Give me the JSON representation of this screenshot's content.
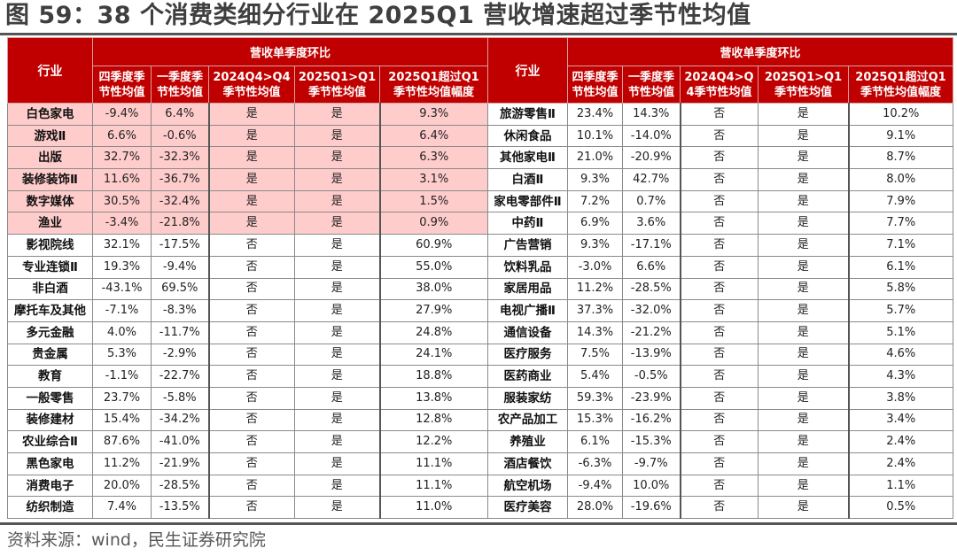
{
  "title": "图 59：38 个消费类细分行业在 2025Q1 营收增速超过季节性均值",
  "source": "资料来源：wind，民生证券研究院",
  "colors": {
    "header_bg": "#c00000",
    "header_text": "#ffffff",
    "highlight_row_bg": "#ffcccc",
    "title_text": "#3f3f3f"
  },
  "left_table": {
    "industry_header": "行业",
    "group_header": "营收单季度环比",
    "columns": [
      "四季度季节性均值",
      "一季度季节性均值",
      "2024Q4>Q4季节性均值",
      "2025Q1>Q1季节性均值",
      "2025Q1超过Q1季节性均值幅度"
    ],
    "col_lines": [
      [
        "四季度季",
        "节性均值"
      ],
      [
        "一季度季",
        "节性均值"
      ],
      [
        "2024Q4>Q4",
        "季节性均值"
      ],
      [
        "2025Q1>Q1",
        "季节性均值"
      ],
      [
        "2025Q1超过Q1",
        "季节性均值幅度"
      ]
    ],
    "rows": [
      {
        "name": "白色家电",
        "q4": "-9.4%",
        "q1": "6.4%",
        "q4_above": "是",
        "q1_above": "是",
        "margin": "9.3%",
        "highlight": true
      },
      {
        "name": "游戏Ⅱ",
        "q4": "6.6%",
        "q1": "-0.6%",
        "q4_above": "是",
        "q1_above": "是",
        "margin": "6.4%",
        "highlight": true
      },
      {
        "name": "出版",
        "q4": "32.7%",
        "q1": "-32.3%",
        "q4_above": "是",
        "q1_above": "是",
        "margin": "6.3%",
        "highlight": true
      },
      {
        "name": "装修装饰Ⅱ",
        "q4": "11.6%",
        "q1": "-36.7%",
        "q4_above": "是",
        "q1_above": "是",
        "margin": "3.1%",
        "highlight": true
      },
      {
        "name": "数字媒体",
        "q4": "30.5%",
        "q1": "-32.4%",
        "q4_above": "是",
        "q1_above": "是",
        "margin": "1.5%",
        "highlight": true
      },
      {
        "name": "渔业",
        "q4": "-3.4%",
        "q1": "-21.8%",
        "q4_above": "是",
        "q1_above": "是",
        "margin": "0.9%",
        "highlight": true
      },
      {
        "name": "影视院线",
        "q4": "32.1%",
        "q1": "-17.5%",
        "q4_above": "否",
        "q1_above": "是",
        "margin": "60.9%",
        "highlight": false
      },
      {
        "name": "专业连锁Ⅱ",
        "q4": "19.3%",
        "q1": "-9.4%",
        "q4_above": "否",
        "q1_above": "是",
        "margin": "55.0%",
        "highlight": false
      },
      {
        "name": "非白酒",
        "q4": "-43.1%",
        "q1": "69.5%",
        "q4_above": "否",
        "q1_above": "是",
        "margin": "38.0%",
        "highlight": false
      },
      {
        "name": "摩托车及其他",
        "q4": "-7.1%",
        "q1": "-8.3%",
        "q4_above": "否",
        "q1_above": "是",
        "margin": "27.9%",
        "highlight": false
      },
      {
        "name": "多元金融",
        "q4": "4.0%",
        "q1": "-11.7%",
        "q4_above": "否",
        "q1_above": "是",
        "margin": "24.8%",
        "highlight": false
      },
      {
        "name": "贵金属",
        "q4": "5.3%",
        "q1": "-2.9%",
        "q4_above": "否",
        "q1_above": "是",
        "margin": "24.1%",
        "highlight": false
      },
      {
        "name": "教育",
        "q4": "-1.1%",
        "q1": "-22.7%",
        "q4_above": "否",
        "q1_above": "是",
        "margin": "18.8%",
        "highlight": false
      },
      {
        "name": "一般零售",
        "q4": "23.7%",
        "q1": "-5.8%",
        "q4_above": "否",
        "q1_above": "是",
        "margin": "13.8%",
        "highlight": false
      },
      {
        "name": "装修建材",
        "q4": "15.4%",
        "q1": "-34.2%",
        "q4_above": "否",
        "q1_above": "是",
        "margin": "12.8%",
        "highlight": false
      },
      {
        "name": "农业综合Ⅱ",
        "q4": "87.6%",
        "q1": "-41.0%",
        "q4_above": "否",
        "q1_above": "是",
        "margin": "12.2%",
        "highlight": false
      },
      {
        "name": "黑色家电",
        "q4": "11.2%",
        "q1": "-21.9%",
        "q4_above": "否",
        "q1_above": "是",
        "margin": "11.1%",
        "highlight": false
      },
      {
        "name": "消费电子",
        "q4": "20.0%",
        "q1": "-28.5%",
        "q4_above": "否",
        "q1_above": "是",
        "margin": "11.1%",
        "highlight": false
      },
      {
        "name": "纺织制造",
        "q4": "7.4%",
        "q1": "-13.5%",
        "q4_above": "否",
        "q1_above": "是",
        "margin": "11.0%",
        "highlight": false
      }
    ]
  },
  "right_table": {
    "industry_header": "行业",
    "group_header": "营收单季度环比",
    "columns": [
      "四季度季节性均值",
      "一季度季节性均值",
      "2024Q4>Q4季节性均值",
      "2025Q1>Q1季节性均值",
      "2025Q1超过Q1季节性均值幅度"
    ],
    "col_lines": [
      [
        "四季度季",
        "节性均值"
      ],
      [
        "一季度季",
        "节性均值"
      ],
      [
        "2024Q4>Q",
        "4季节性均值"
      ],
      [
        "2025Q1>Q1",
        "季节性均值"
      ],
      [
        "2025Q1超过Q1",
        "季节性均值幅度"
      ]
    ],
    "rows": [
      {
        "name": "旅游零售Ⅱ",
        "q4": "23.4%",
        "q1": "14.3%",
        "q4_above": "否",
        "q1_above": "是",
        "margin": "10.2%",
        "highlight": false
      },
      {
        "name": "休闲食品",
        "q4": "10.1%",
        "q1": "-14.0%",
        "q4_above": "否",
        "q1_above": "是",
        "margin": "9.1%",
        "highlight": false
      },
      {
        "name": "其他家电Ⅱ",
        "q4": "21.0%",
        "q1": "-20.9%",
        "q4_above": "否",
        "q1_above": "是",
        "margin": "8.7%",
        "highlight": false
      },
      {
        "name": "白酒Ⅱ",
        "q4": "9.3%",
        "q1": "42.7%",
        "q4_above": "否",
        "q1_above": "是",
        "margin": "8.0%",
        "highlight": false
      },
      {
        "name": "家电零部件Ⅱ",
        "q4": "7.2%",
        "q1": "0.7%",
        "q4_above": "否",
        "q1_above": "是",
        "margin": "7.9%",
        "highlight": false
      },
      {
        "name": "中药Ⅱ",
        "q4": "6.9%",
        "q1": "3.6%",
        "q4_above": "否",
        "q1_above": "是",
        "margin": "7.7%",
        "highlight": false
      },
      {
        "name": "广告营销",
        "q4": "9.3%",
        "q1": "-17.1%",
        "q4_above": "否",
        "q1_above": "是",
        "margin": "7.1%",
        "highlight": false
      },
      {
        "name": "饮料乳品",
        "q4": "-3.0%",
        "q1": "6.6%",
        "q4_above": "否",
        "q1_above": "是",
        "margin": "6.1%",
        "highlight": false
      },
      {
        "name": "家居用品",
        "q4": "11.2%",
        "q1": "-28.5%",
        "q4_above": "否",
        "q1_above": "是",
        "margin": "5.8%",
        "highlight": false
      },
      {
        "name": "电视广播Ⅱ",
        "q4": "37.3%",
        "q1": "-32.0%",
        "q4_above": "否",
        "q1_above": "是",
        "margin": "5.7%",
        "highlight": false
      },
      {
        "name": "通信设备",
        "q4": "14.3%",
        "q1": "-21.2%",
        "q4_above": "否",
        "q1_above": "是",
        "margin": "5.1%",
        "highlight": false
      },
      {
        "name": "医疗服务",
        "q4": "7.5%",
        "q1": "-13.9%",
        "q4_above": "否",
        "q1_above": "是",
        "margin": "4.6%",
        "highlight": false
      },
      {
        "name": "医药商业",
        "q4": "5.4%",
        "q1": "-0.5%",
        "q4_above": "否",
        "q1_above": "是",
        "margin": "4.3%",
        "highlight": false
      },
      {
        "name": "服装家纺",
        "q4": "59.3%",
        "q1": "-23.9%",
        "q4_above": "否",
        "q1_above": "是",
        "margin": "3.8%",
        "highlight": false
      },
      {
        "name": "农产品加工",
        "q4": "15.3%",
        "q1": "-16.2%",
        "q4_above": "否",
        "q1_above": "是",
        "margin": "3.4%",
        "highlight": false
      },
      {
        "name": "养殖业",
        "q4": "6.1%",
        "q1": "-15.3%",
        "q4_above": "否",
        "q1_above": "是",
        "margin": "2.4%",
        "highlight": false
      },
      {
        "name": "酒店餐饮",
        "q4": "-6.3%",
        "q1": "-9.7%",
        "q4_above": "否",
        "q1_above": "是",
        "margin": "2.4%",
        "highlight": false
      },
      {
        "name": "航空机场",
        "q4": "-9.4%",
        "q1": "10.0%",
        "q4_above": "否",
        "q1_above": "是",
        "margin": "1.1%",
        "highlight": false
      },
      {
        "name": "医疗美容",
        "q4": "28.0%",
        "q1": "-19.6%",
        "q4_above": "否",
        "q1_above": "是",
        "margin": "0.5%",
        "highlight": false
      }
    ]
  }
}
